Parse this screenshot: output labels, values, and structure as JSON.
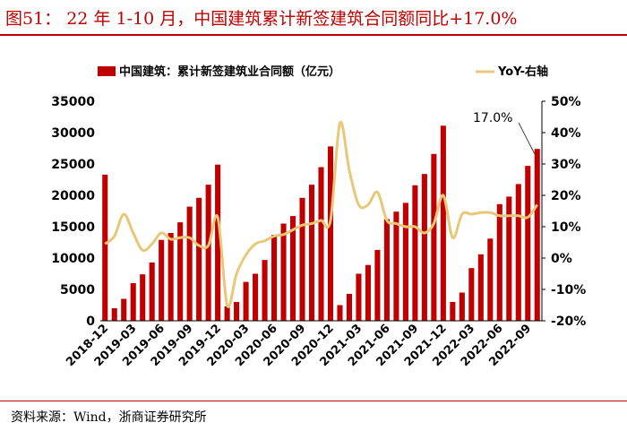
{
  "figure_title": "图51：  22 年 1-10 月，中国建筑累计新签建筑合同额同比+17.0%",
  "source": "资料来源：Wind，浙商证券研究所",
  "colors": {
    "bar": "#c00000",
    "line": "#e8c878",
    "title": "#c00000"
  },
  "chart_data": {
    "type": "bar",
    "title": "",
    "legend": [
      "中国建筑：累计新签建筑业合同额（亿元）",
      "YoY-右轴"
    ],
    "legend_position": "top",
    "ylim": [
      0,
      35000
    ],
    "y_ticks": [
      "0",
      "5000",
      "10000",
      "15000",
      "20000",
      "25000",
      "30000",
      "35000"
    ],
    "y2lim": [
      -20,
      50
    ],
    "y2_ticks": [
      "-20%",
      "-10%",
      "0%",
      "10%",
      "20%",
      "30%",
      "40%",
      "50%"
    ],
    "x_tick_labels": [
      "2018-12",
      "2019-03",
      "2019-06",
      "2019-09",
      "2019-12",
      "2020-03",
      "2020-06",
      "2020-09",
      "2020-12",
      "2021-03",
      "2021-06",
      "2021-09",
      "2021-12",
      "2022-03",
      "2022-06",
      "2022-09"
    ],
    "annotation": "17.0%",
    "categories": [
      "2018-12",
      "2019-01",
      "2019-02",
      "2019-03",
      "2019-04",
      "2019-05",
      "2019-06",
      "2019-07",
      "2019-08",
      "2019-09",
      "2019-10",
      "2019-11",
      "2019-12",
      "2020-01",
      "2020-02",
      "2020-03",
      "2020-04",
      "2020-05",
      "2020-06",
      "2020-07",
      "2020-08",
      "2020-09",
      "2020-10",
      "2020-11",
      "2020-12",
      "2021-01",
      "2021-02",
      "2021-03",
      "2021-04",
      "2021-05",
      "2021-06",
      "2021-07",
      "2021-08",
      "2021-09",
      "2021-10",
      "2021-11",
      "2021-12",
      "2022-01",
      "2022-02",
      "2022-03",
      "2022-04",
      "2022-05",
      "2022-06",
      "2022-07",
      "2022-08",
      "2022-09",
      "2022-10"
    ],
    "series": [
      {
        "name": "中国建筑：累计新签建筑业合同额（亿元）",
        "type": "bar",
        "axis": "left",
        "values": [
          23300,
          2000,
          3500,
          6000,
          7400,
          9300,
          12900,
          14000,
          15700,
          18200,
          19600,
          21700,
          24900,
          2300,
          3000,
          6200,
          7500,
          9700,
          13700,
          15500,
          16700,
          19600,
          21700,
          24500,
          27800,
          2500,
          4300,
          7500,
          8900,
          11300,
          16200,
          17400,
          18800,
          21600,
          23400,
          26600,
          31100,
          3000,
          4500,
          8400,
          10600,
          13100,
          18600,
          19800,
          21800,
          24700,
          27400
        ]
      },
      {
        "name": "YoY-右轴",
        "type": "line",
        "axis": "right",
        "values": [
          4.5,
          7,
          14,
          8,
          2.5,
          4.5,
          8,
          6,
          6.5,
          6.5,
          4,
          4,
          13,
          -15,
          -5,
          1,
          4.5,
          5.5,
          7,
          7.5,
          9,
          10.5,
          11,
          12,
          12,
          43,
          28,
          17,
          17,
          21,
          12,
          11,
          10,
          10,
          8,
          11,
          20,
          6.5,
          14,
          14,
          14.5,
          14.5,
          13.5,
          13.5,
          13.5,
          13,
          17
        ]
      }
    ]
  }
}
